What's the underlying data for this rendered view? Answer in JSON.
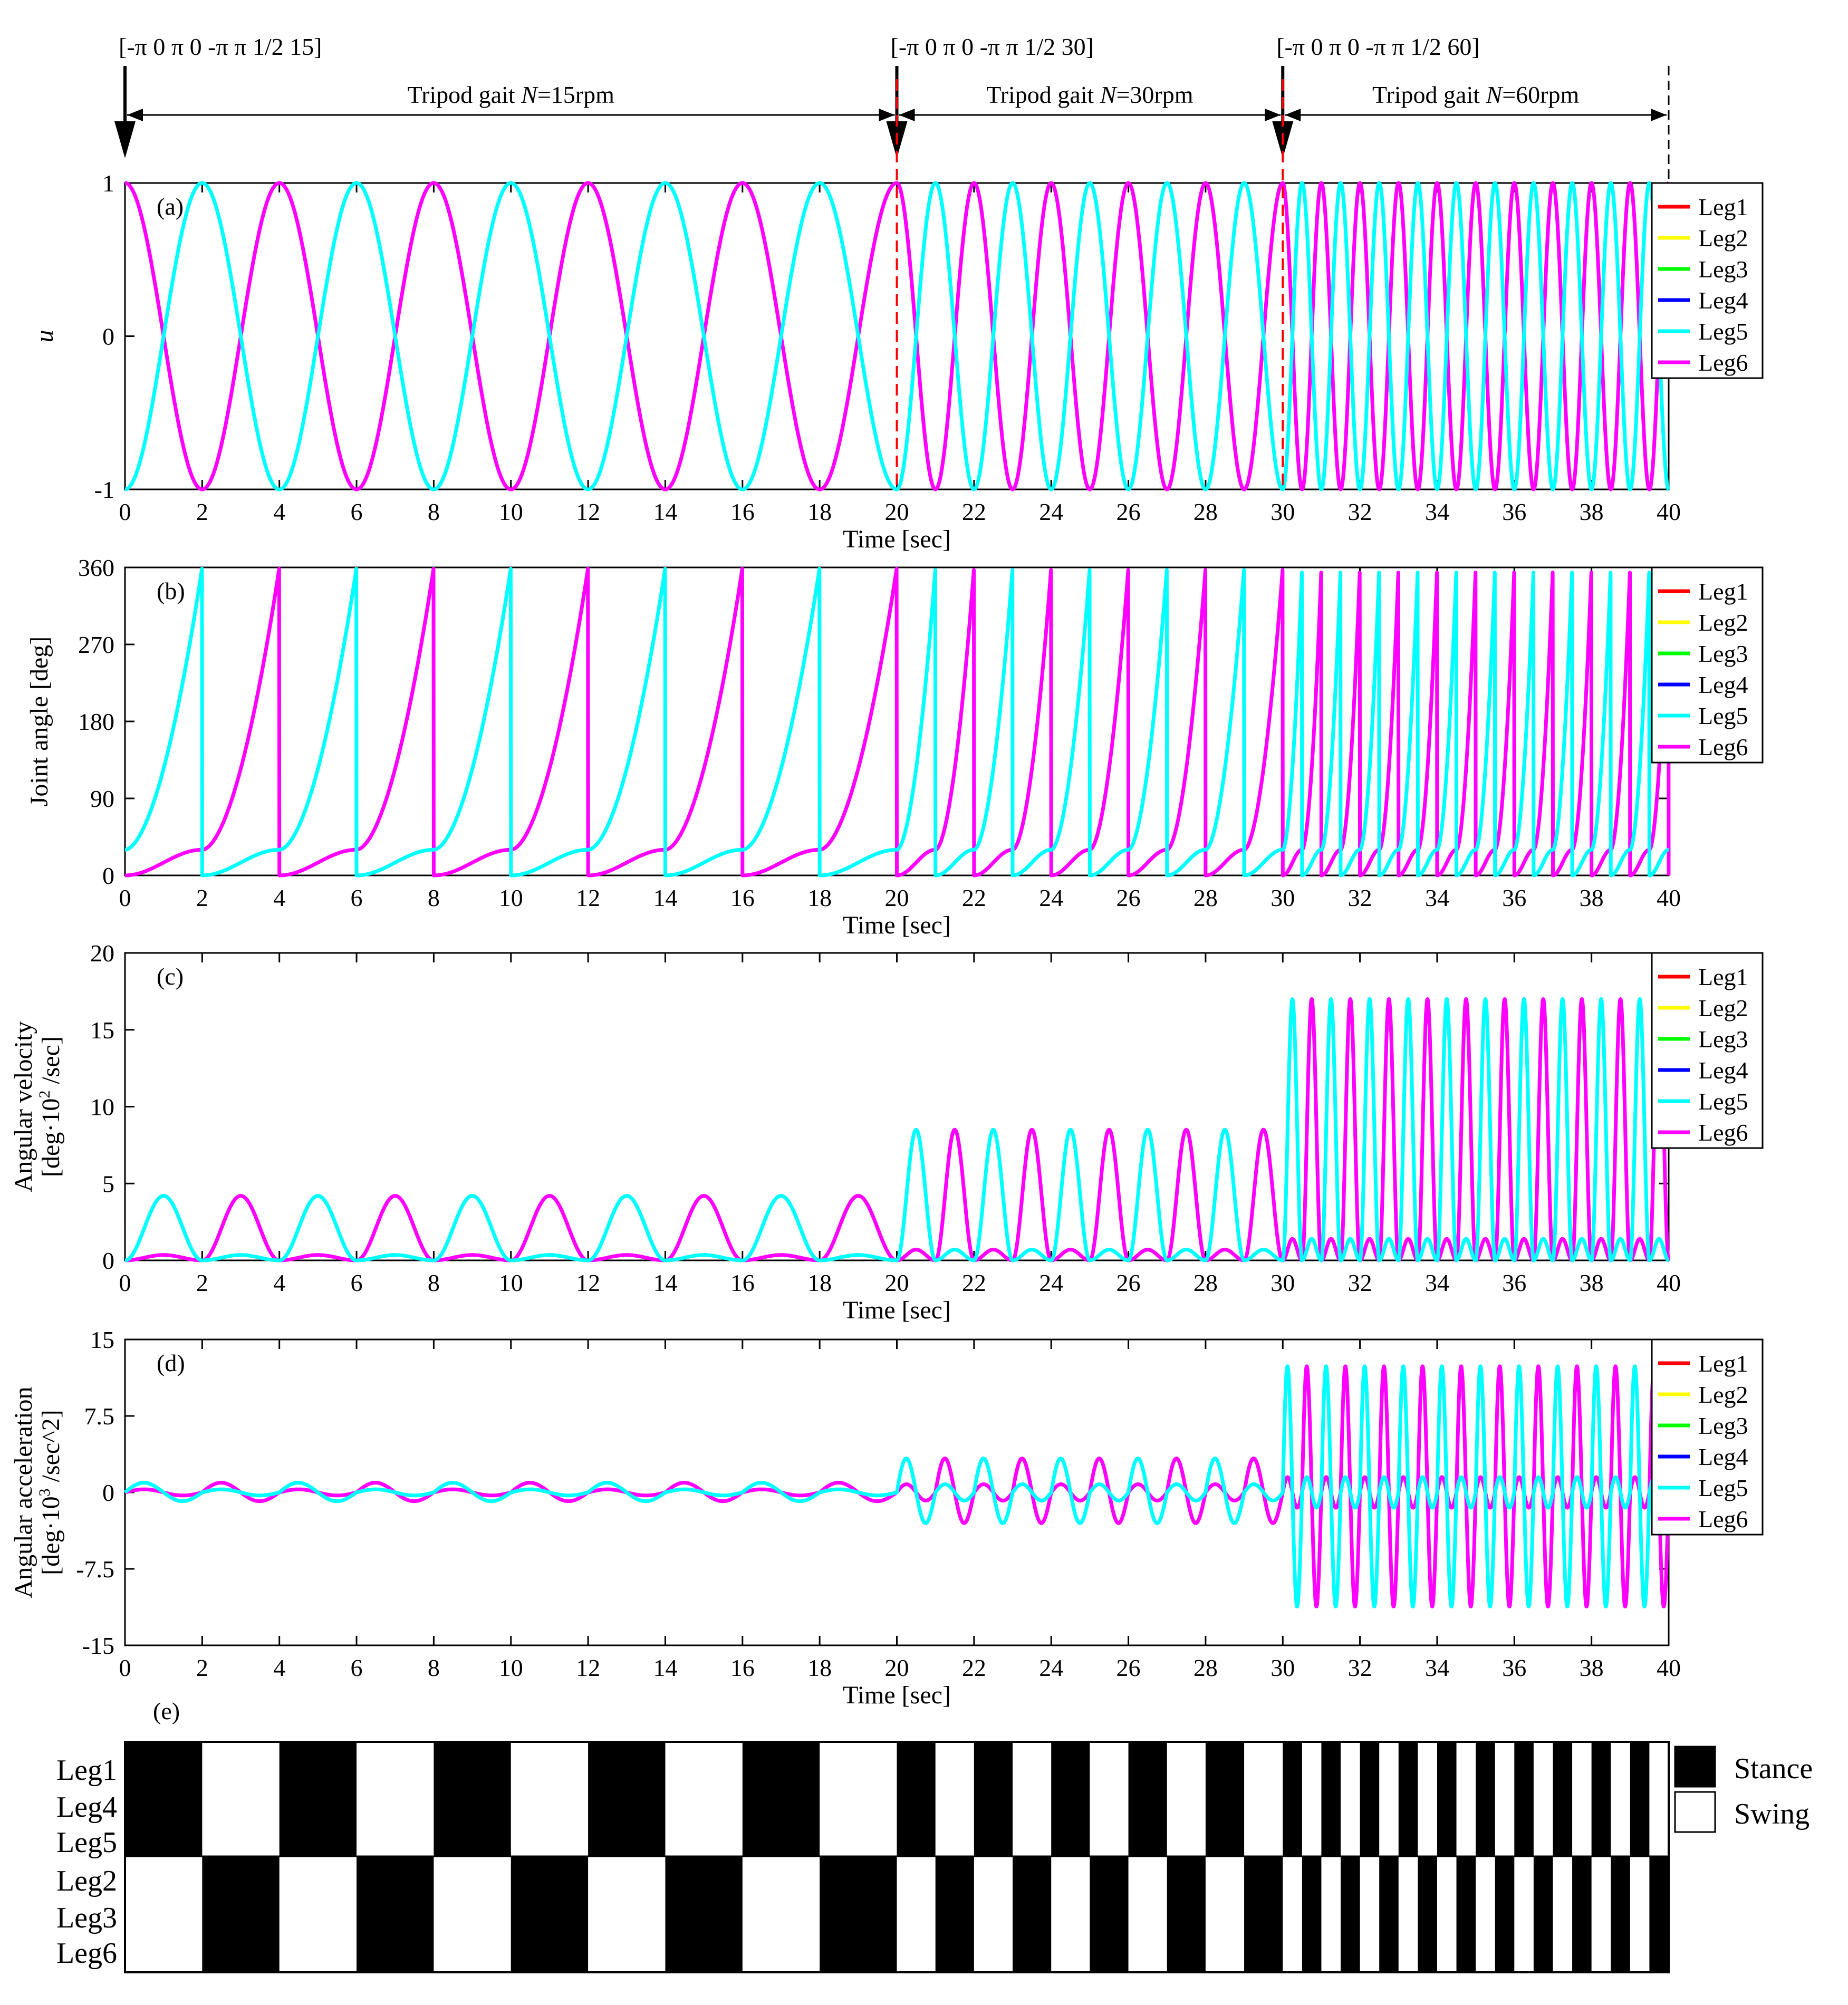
{
  "figure": {
    "header": {
      "param_labels": [
        "[-π 0 π 0 -π π 1/2 15]",
        "[-π 0 π 0 -π π 1/2 30]",
        "[-π 0 π 0 -π π 1/2 60]"
      ],
      "segment_labels": [
        {
          "pre": "Tripod gait ",
          "N": "N",
          "post": "=15rpm",
          "t0": 0,
          "t1": 20
        },
        {
          "pre": "Tripod gait ",
          "N": "N",
          "post": "=30rpm",
          "t0": 20,
          "t1": 30
        },
        {
          "pre": "Tripod gait ",
          "N": "N",
          "post": "=60rpm",
          "t0": 30,
          "t1": 40
        }
      ],
      "switch_times": [
        20,
        30
      ],
      "end_time": 40
    },
    "colors": {
      "Leg1": "#ff0000",
      "Leg2": "#ffff00",
      "Leg3": "#00ff00",
      "Leg4": "#0000ff",
      "Leg5": "#00ffff",
      "Leg6": "#ff00ff",
      "switch_line": "#ff0000",
      "arrow": "#000000"
    },
    "legend": [
      "Leg1",
      "Leg2",
      "Leg3",
      "Leg4",
      "Leg5",
      "Leg6"
    ],
    "gait_legend": [
      "Stance",
      "Swing"
    ],
    "gait_rows": [
      [
        "Leg1",
        "Leg4",
        "Leg5"
      ],
      [
        "Leg2",
        "Leg3",
        "Leg6"
      ]
    ]
  },
  "chart_data": [
    {
      "id": "a",
      "panel_label": "(a)",
      "type": "line",
      "xlabel": "Time [sec]",
      "ylabel": "u",
      "xlim": [
        0,
        40
      ],
      "ylim": [
        -1,
        1
      ],
      "xticks": [
        0,
        2,
        4,
        6,
        8,
        10,
        12,
        14,
        16,
        18,
        20,
        22,
        24,
        26,
        28,
        30,
        32,
        34,
        36,
        38,
        40
      ],
      "yticks": [
        -1,
        0,
        1
      ],
      "ytick_labels": [
        "-1",
        "0",
        "1"
      ],
      "segments": [
        {
          "t0": 0,
          "t1": 20,
          "rpm": 15,
          "period_s": 4
        },
        {
          "t0": 20,
          "t1": 30,
          "rpm": 30,
          "period_s": 2
        },
        {
          "t0": 30,
          "t1": 40,
          "rpm": 60,
          "period_s": 1
        }
      ],
      "series": [
        {
          "name": "Leg6",
          "shape": "cosine",
          "phase": 0,
          "color": "#ff00ff",
          "overlapped": [
            "Leg2",
            "Leg3"
          ]
        },
        {
          "name": "Leg5",
          "shape": "cosine",
          "phase": 0.5,
          "color": "#00ffff",
          "overlapped": [
            "Leg1",
            "Leg4"
          ]
        }
      ],
      "drawn_legs": [
        "Leg5",
        "Leg6"
      ]
    },
    {
      "id": "b",
      "panel_label": "(b)",
      "type": "line",
      "xlabel": "Time [sec]",
      "ylabel": "Joint angle [deg]",
      "xlim": [
        0,
        40
      ],
      "ylim": [
        0,
        360
      ],
      "xticks": [
        0,
        2,
        4,
        6,
        8,
        10,
        12,
        14,
        16,
        18,
        20,
        22,
        24,
        26,
        28,
        30,
        32,
        34,
        36,
        38,
        40
      ],
      "yticks": [
        0,
        90,
        180,
        270,
        360
      ],
      "ytick_labels": [
        "0",
        "90",
        "180",
        "270",
        "360"
      ],
      "stance_plateau_deg": 30,
      "swing_peak_deg": 360,
      "series": [
        {
          "name": "Leg6",
          "shape": "sawtooth",
          "phase": 0,
          "color": "#ff00ff"
        },
        {
          "name": "Leg5",
          "shape": "sawtooth",
          "phase": 0.5,
          "color": "#00ffff"
        }
      ],
      "drawn_legs": [
        "Leg5",
        "Leg6"
      ]
    },
    {
      "id": "c",
      "panel_label": "(c)",
      "type": "line",
      "xlabel": "Time [sec]",
      "ylabel": "Angular velocity",
      "ylabel2": [
        "[deg·10",
        "2",
        " /sec]"
      ],
      "xlim": [
        0,
        40
      ],
      "ylim": [
        0,
        20
      ],
      "xticks": [
        0,
        2,
        4,
        6,
        8,
        10,
        12,
        14,
        16,
        18,
        20,
        22,
        24,
        26,
        28,
        30,
        32,
        34,
        36,
        38,
        40
      ],
      "yticks": [
        0,
        5,
        10,
        15,
        20
      ],
      "ytick_labels": [
        "0",
        "5",
        "10",
        "15",
        "20"
      ],
      "peaks": [
        {
          "t0": 0,
          "t1": 20,
          "main": 4.2,
          "minor": 0.35
        },
        {
          "t0": 20,
          "t1": 30,
          "main": 8.5,
          "minor": 0.7
        },
        {
          "t0": 30,
          "t1": 40,
          "main": 17,
          "minor": 1.4
        }
      ],
      "series": [
        {
          "name": "Leg6",
          "shape": "pulse",
          "phase": 0,
          "color": "#ff00ff"
        },
        {
          "name": "Leg5",
          "shape": "pulse",
          "phase": 0.5,
          "color": "#00ffff"
        }
      ],
      "drawn_legs": [
        "Leg5",
        "Leg6"
      ]
    },
    {
      "id": "d",
      "panel_label": "(d)",
      "type": "line",
      "xlabel": "Time [sec]",
      "ylabel": "Angular acceleration",
      "ylabel2": [
        "[deg·10",
        "3",
        " /sec^2]"
      ],
      "xlim": [
        0,
        40
      ],
      "ylim": [
        -15,
        15
      ],
      "xticks": [
        0,
        2,
        4,
        6,
        8,
        10,
        12,
        14,
        16,
        18,
        20,
        22,
        24,
        26,
        28,
        30,
        32,
        34,
        36,
        38,
        40
      ],
      "yticks": [
        -15,
        -7.5,
        0,
        7.5,
        15
      ],
      "ytick_labels": [
        "-15",
        "-7.5",
        "0",
        "7.5",
        "15"
      ],
      "peaks": [
        {
          "t0": 0,
          "t1": 20,
          "main": 1.0,
          "minor": 0.3
        },
        {
          "t0": 20,
          "t1": 30,
          "main": 3.5,
          "minor": 0.8
        },
        {
          "t0": 30,
          "t1": 40,
          "main": 13,
          "minor": 1.5
        }
      ],
      "series": [
        {
          "name": "Leg6",
          "shape": "derivative",
          "phase": 0,
          "color": "#ff00ff"
        },
        {
          "name": "Leg5",
          "shape": "derivative",
          "phase": 0.5,
          "color": "#00ffff"
        }
      ],
      "drawn_legs": [
        "Leg5",
        "Leg6"
      ]
    },
    {
      "id": "e",
      "panel_label": "(e)",
      "type": "heatmap",
      "xlim": [
        0,
        40
      ],
      "rows": [
        "Leg1/Leg4/Leg5",
        "Leg2/Leg3/Leg6"
      ],
      "group1_stance_first": true,
      "segments": [
        {
          "t0": 0,
          "t1": 20,
          "half_period_s": 2
        },
        {
          "t0": 20,
          "t1": 30,
          "half_period_s": 1
        },
        {
          "t0": 30,
          "t1": 40,
          "half_period_s": 0.5
        }
      ]
    }
  ]
}
